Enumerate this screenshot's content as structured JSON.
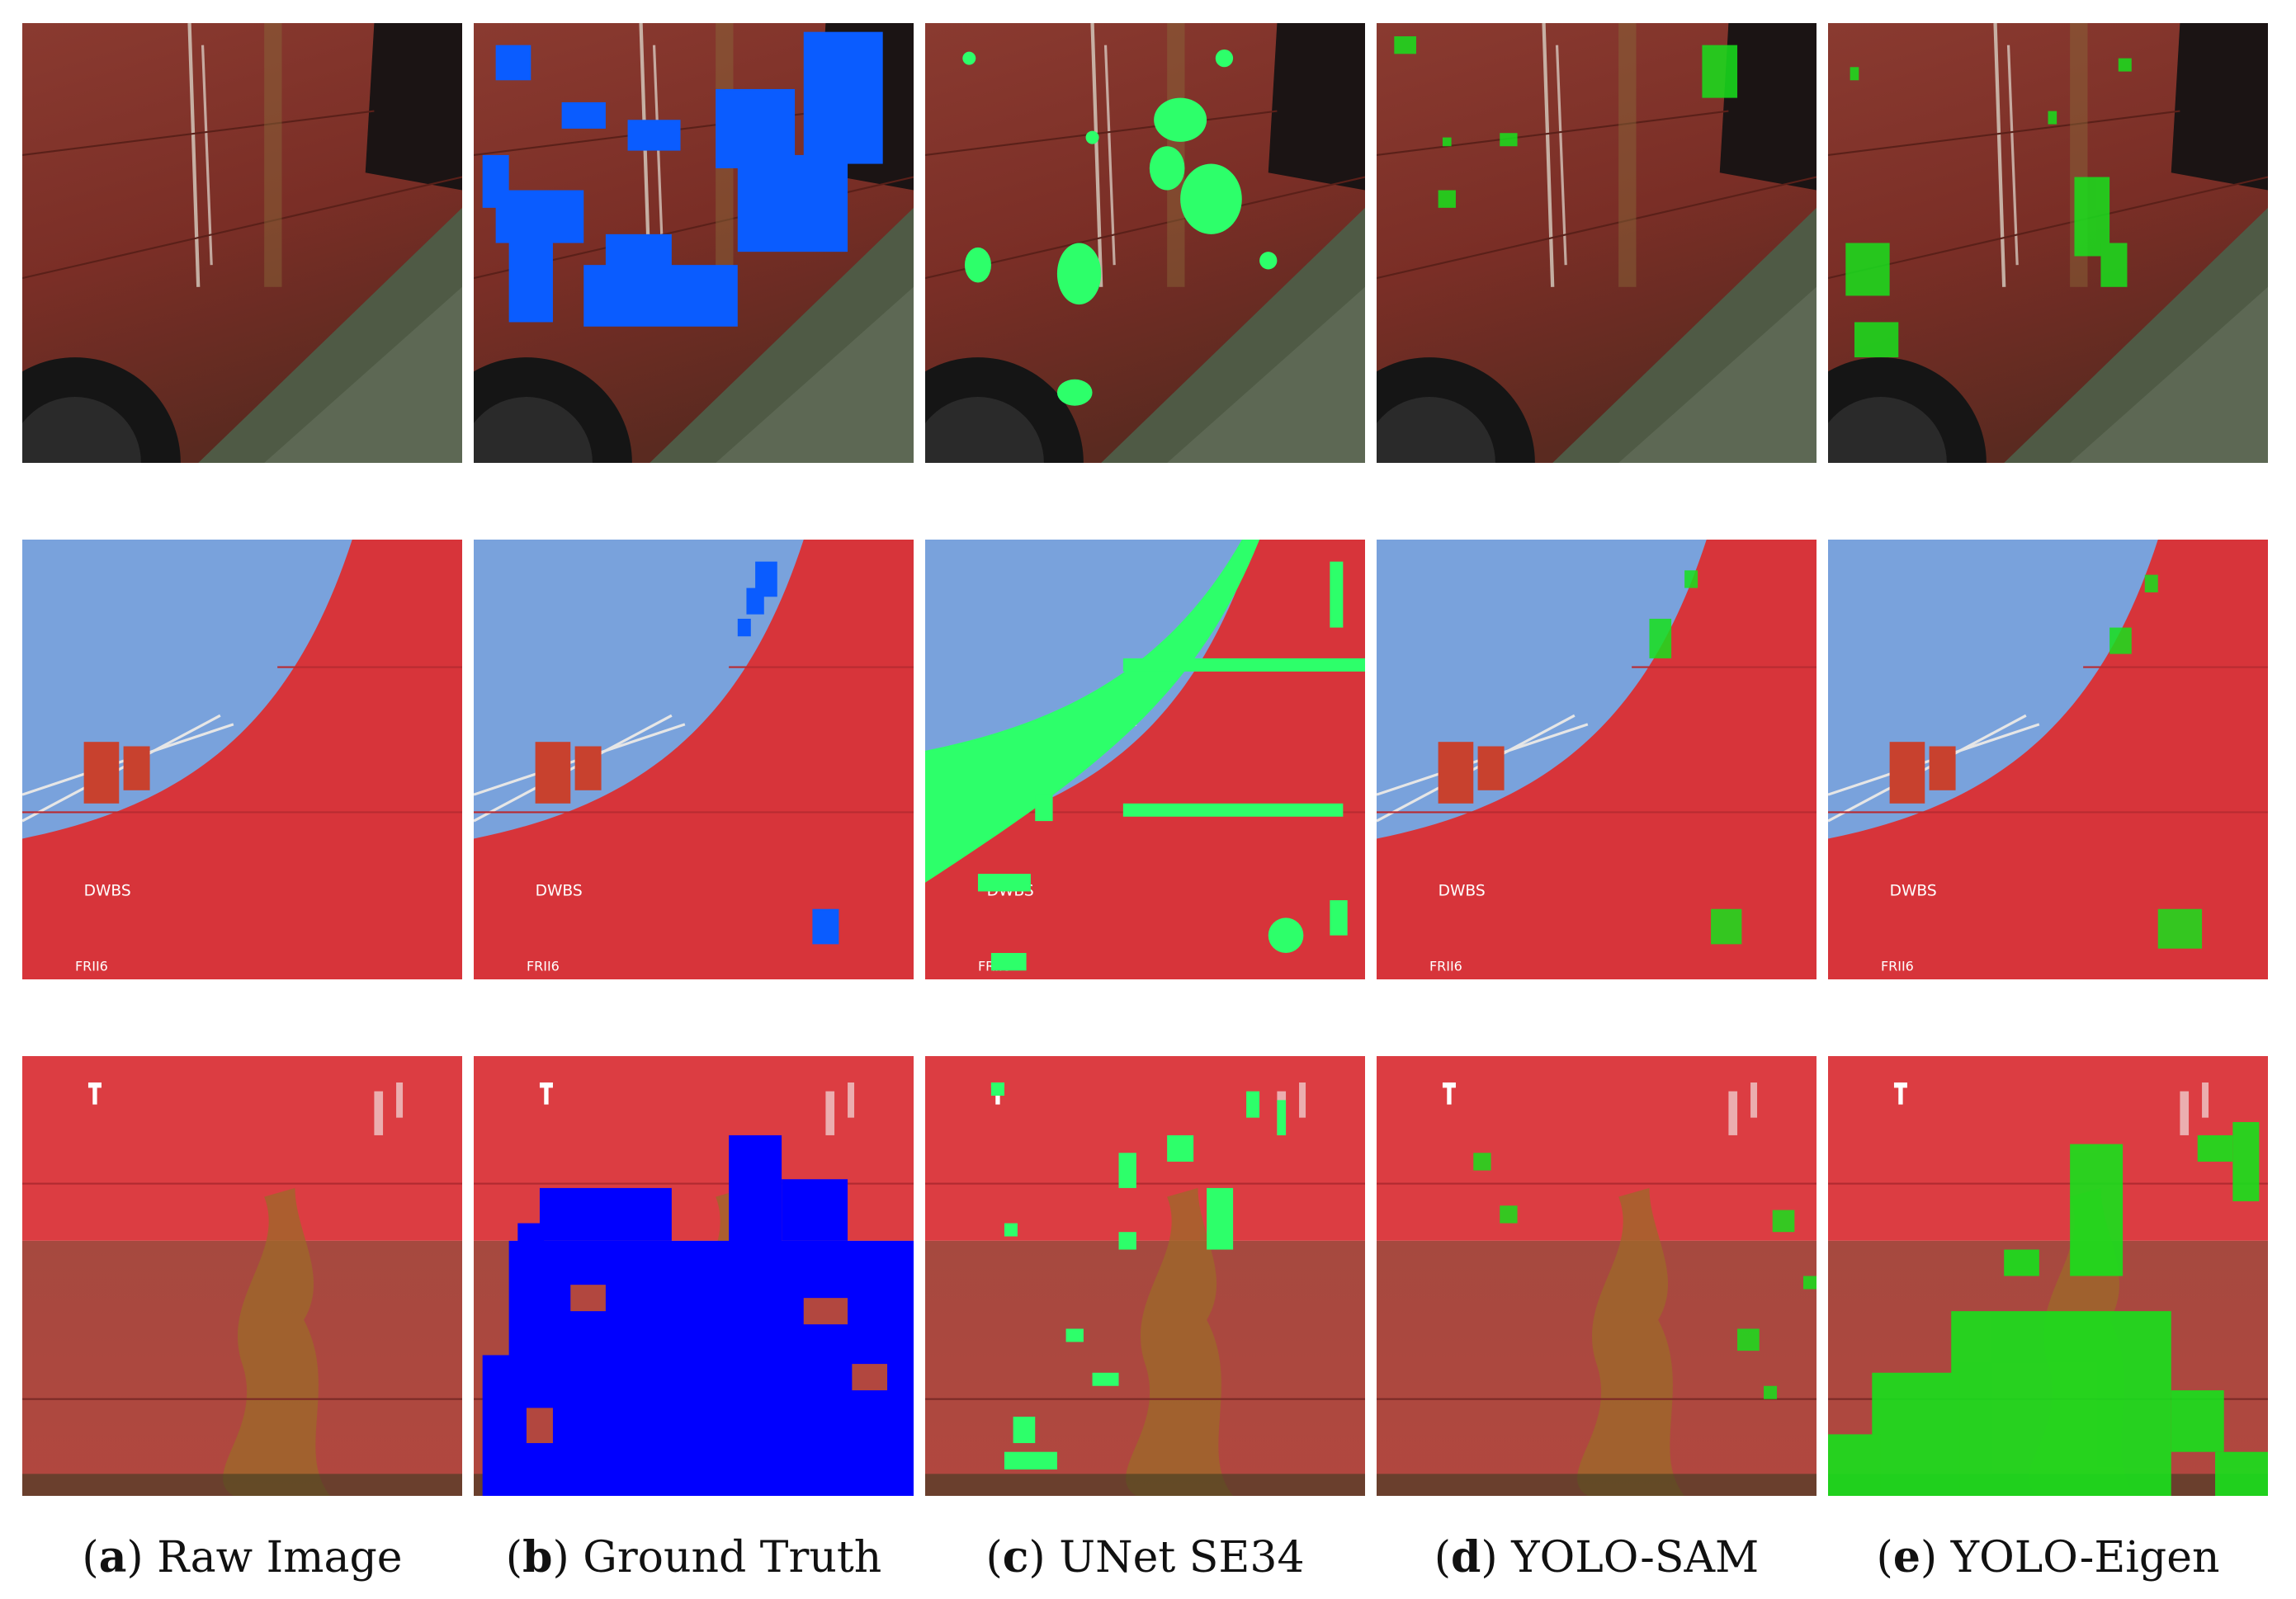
{
  "captions": [
    {
      "letter": "a",
      "label": "Raw Image"
    },
    {
      "letter": "b",
      "label": "Ground Truth"
    },
    {
      "letter": "c",
      "label": "UNet SE34"
    },
    {
      "letter": "d",
      "label": "YOLO-SAM"
    },
    {
      "letter": "e",
      "label": "YOLO-Eigen"
    }
  ],
  "colors": {
    "hull_rust": "#7a2e24",
    "hull_red": "#d9343b",
    "sky": "#79a2dc",
    "water": "#4e5a45",
    "ground_truth_mask": "#0a5cff",
    "ground_truth_mask_deep": "#0000ff",
    "prediction_mask": "#2dff6a",
    "prediction_mask_deep": "#18e01c"
  },
  "rows": [
    {
      "scene": "rusty-hull-at-waterline"
    },
    {
      "scene": "red-bow-with-railing"
    },
    {
      "scene": "red-hull-with-corrosion"
    }
  ]
}
